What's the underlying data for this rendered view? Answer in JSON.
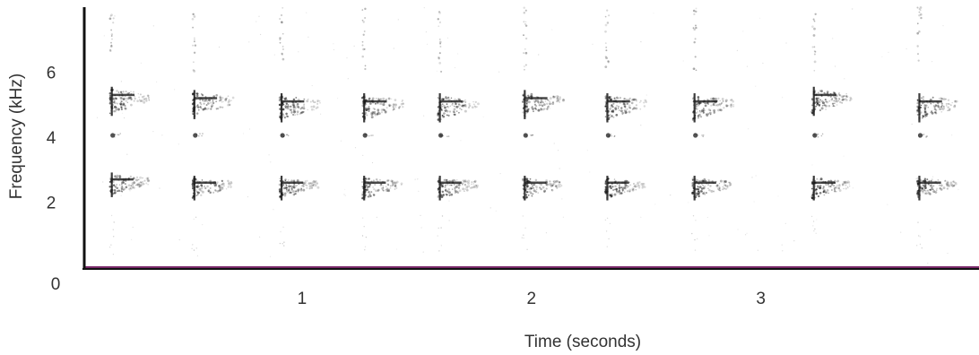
{
  "chart_data": {
    "type": "heatmap",
    "title": "",
    "xlabel": "Time (seconds)",
    "ylabel": "Frequency (kHz)",
    "xlim": [
      0,
      3.9
    ],
    "ylim": [
      0,
      8
    ],
    "x_ticks": [
      1,
      2,
      3
    ],
    "x_tick_labels": [
      "1",
      "2",
      "3"
    ],
    "y_ticks": [
      0,
      2,
      4,
      6
    ],
    "y_tick_labels": [
      "0",
      "2",
      "4",
      "6"
    ],
    "grid": false,
    "colors": {
      "ink": "#1a1a1a",
      "axis": "#111111",
      "baseline": "#7a2a6a",
      "text": "#333333"
    },
    "calls": [
      {
        "t": 0.12,
        "upper_khz": 5.3,
        "lower_khz": 2.7
      },
      {
        "t": 0.48,
        "upper_khz": 5.2,
        "lower_khz": 2.6
      },
      {
        "t": 0.86,
        "upper_khz": 5.1,
        "lower_khz": 2.6
      },
      {
        "t": 1.22,
        "upper_khz": 5.1,
        "lower_khz": 2.6
      },
      {
        "t": 1.55,
        "upper_khz": 5.1,
        "lower_khz": 2.6
      },
      {
        "t": 1.92,
        "upper_khz": 5.2,
        "lower_khz": 2.6
      },
      {
        "t": 2.28,
        "upper_khz": 5.1,
        "lower_khz": 2.6
      },
      {
        "t": 2.66,
        "upper_khz": 5.1,
        "lower_khz": 2.6
      },
      {
        "t": 3.18,
        "upper_khz": 5.3,
        "lower_khz": 2.6
      },
      {
        "t": 3.64,
        "upper_khz": 5.1,
        "lower_khz": 2.6
      }
    ],
    "dot_khz": 4.0,
    "streak_top_khz": 8.0
  }
}
